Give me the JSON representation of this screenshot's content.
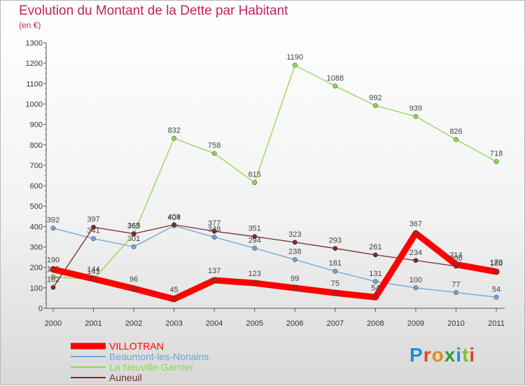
{
  "title": "Evolution du Montant de la Dette par Habitant",
  "subtitle": "(en €)",
  "logo": "Proxiti",
  "colors": {
    "title": "#c0245f",
    "villotran": "#ff0000",
    "beaumont": "#6fa3d6",
    "neuville": "#8ed84f",
    "auneuil": "#7b2a2a"
  },
  "chart_data": {
    "type": "line",
    "title": "Evolution du Montant de la Dette par Habitant",
    "ylabel": "(en €)",
    "xlabel": "",
    "categories": [
      "2000",
      "2001",
      "2002",
      "2003",
      "2004",
      "2005",
      "2006",
      "2007",
      "2008",
      "2009",
      "2010",
      "2011"
    ],
    "y_ticks": [
      0,
      100,
      200,
      300,
      400,
      500,
      600,
      700,
      800,
      900,
      1000,
      1100,
      1200,
      1300
    ],
    "ylim": [
      0,
      1300
    ],
    "grid": false,
    "legend_position": "bottom-left",
    "series": [
      {
        "name": "VILLOTRAN",
        "color": "#ff0000",
        "emphasis": true,
        "values": [
          190,
          144,
          96,
          45,
          137,
          123,
          99,
          75,
          54,
          367,
          214,
          179
        ]
      },
      {
        "name": "Beaumont-les-Nonains",
        "color": "#6fa3d6",
        "emphasis": false,
        "values": [
          392,
          341,
          301,
          404,
          348,
          294,
          238,
          181,
          131,
          100,
          77,
          54
        ]
      },
      {
        "name": "La Neuville-Garnier",
        "color": "#8ed84f",
        "emphasis": false,
        "values": [
          153,
          141,
          363,
          832,
          758,
          615,
          1190,
          1088,
          992,
          939,
          826,
          718
        ]
      },
      {
        "name": "Auneuil",
        "color": "#7b2a2a",
        "emphasis": false,
        "values": [
          102,
          397,
          365,
          409,
          377,
          351,
          323,
          293,
          261,
          234,
          206,
          180
        ]
      }
    ]
  }
}
